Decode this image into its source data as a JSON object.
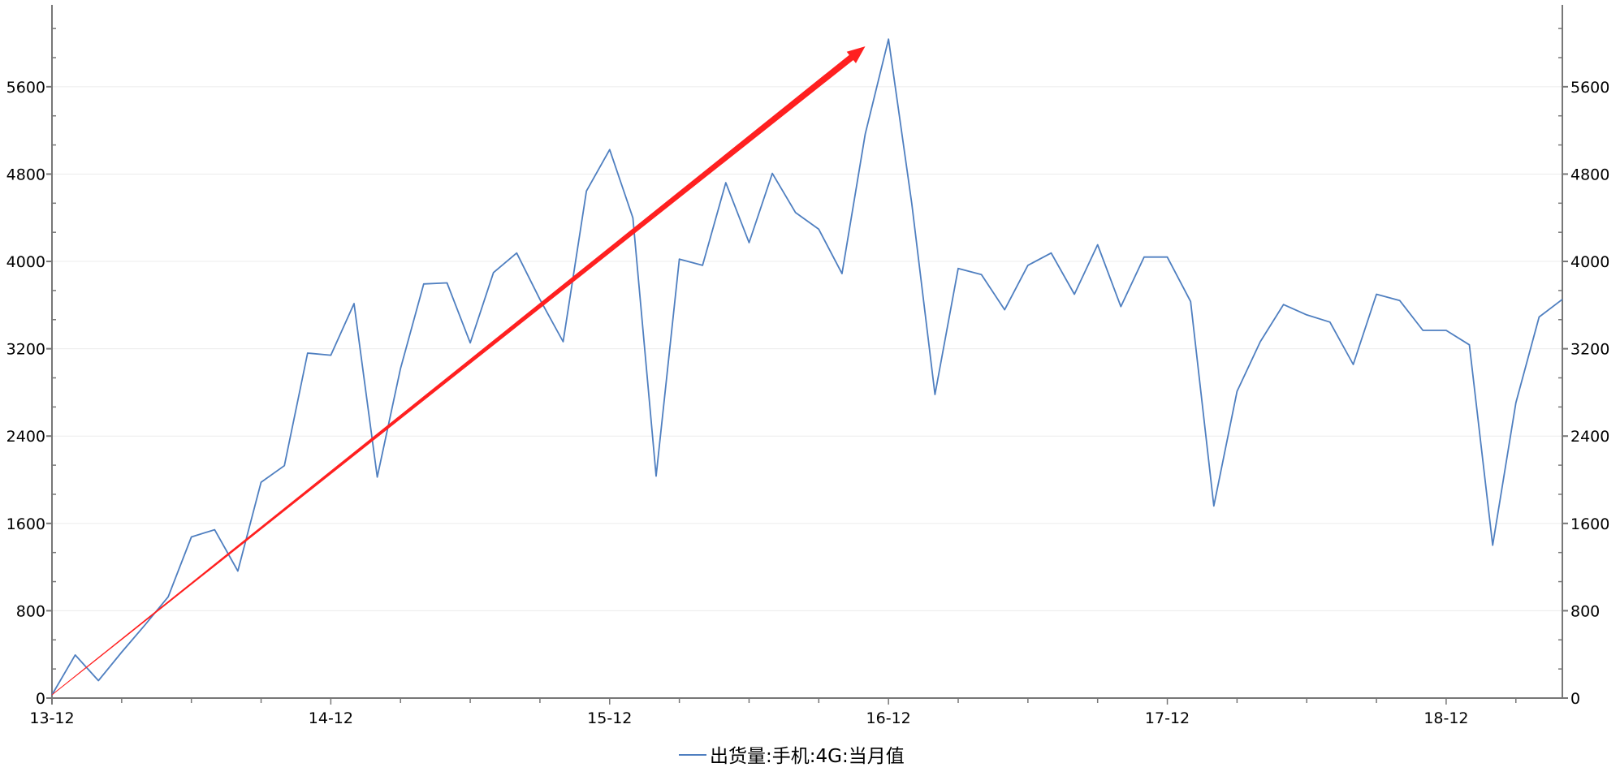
{
  "chart_data": {
    "type": "line",
    "title": "",
    "xlabel": "",
    "ylabel": "",
    "ylim": [
      0,
      6350
    ],
    "y_ticks": [
      0,
      800,
      1600,
      2400,
      3200,
      4000,
      4800,
      5600
    ],
    "y_tick_labels": [
      "0",
      "800",
      "1600",
      "2400",
      "3200",
      "4000",
      "4800",
      "5600"
    ],
    "right_axis_mirrors_left": true,
    "x_tick_labels": [
      "13-12",
      "14-12",
      "15-12",
      "16-12",
      "17-12",
      "18-12"
    ],
    "grid": "horizontal",
    "legend_position": "bottom",
    "categories": [
      "13-12",
      "14-01",
      "14-02",
      "14-03",
      "14-04",
      "14-05",
      "14-06",
      "14-07",
      "14-08",
      "14-09",
      "14-10",
      "14-11",
      "14-12",
      "15-01",
      "15-02",
      "15-03",
      "15-04",
      "15-05",
      "15-06",
      "15-07",
      "15-08",
      "15-09",
      "15-10",
      "15-11",
      "15-12",
      "16-01",
      "16-02",
      "16-03",
      "16-04",
      "16-05",
      "16-06",
      "16-07",
      "16-08",
      "16-09",
      "16-10",
      "16-11",
      "16-12",
      "17-01",
      "17-02",
      "17-03",
      "17-04",
      "17-05",
      "17-06",
      "17-07",
      "17-08",
      "17-09",
      "17-10",
      "17-11",
      "17-12",
      "18-01",
      "18-02",
      "18-03",
      "18-04",
      "18-05",
      "18-06",
      "18-07",
      "18-08",
      "18-09",
      "18-10",
      "18-11",
      "18-12",
      "19-01",
      "19-02",
      "19-03",
      "19-04",
      "19-05"
    ],
    "series": [
      {
        "name": "出货量:手机:4G:当月值",
        "color": "#4f7fc0",
        "values": [
          30,
          395,
          160,
          420,
          670,
          927,
          1476,
          1542,
          1164,
          1977,
          2129,
          3160,
          3141,
          3614,
          2025,
          3018,
          3794,
          3803,
          3254,
          3898,
          4077,
          3652,
          3264,
          4645,
          5024,
          4399,
          2034,
          4021,
          3964,
          4721,
          4172,
          4806,
          4447,
          4295,
          3888,
          5166,
          6036,
          4532,
          2781,
          3936,
          3879,
          3557,
          3964,
          4077,
          3699,
          4153,
          3586,
          4040,
          4040,
          3633,
          1760,
          2810,
          3264,
          3605,
          3510,
          3444,
          3056,
          3699,
          3642,
          3368,
          3368,
          3236,
          1400,
          2706,
          3491,
          3652
        ]
      }
    ],
    "annotation": {
      "type": "arrow",
      "color": "#ff2020",
      "from": {
        "x": "13-12",
        "y": 30
      },
      "to": {
        "x": "16-11",
        "y": 5970
      }
    }
  }
}
